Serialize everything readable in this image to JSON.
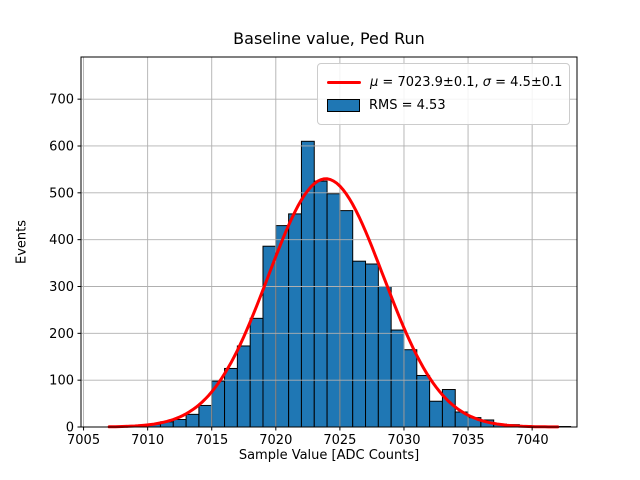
{
  "chart_data": {
    "type": "bar",
    "subtype": "histogram",
    "title": "Baseline value, Ped Run",
    "xlabel": "Sample Value [ADC Counts]",
    "ylabel": "Events",
    "xlim": [
      7004.8,
      7043.5
    ],
    "ylim": [
      0,
      790
    ],
    "grid": true,
    "x_ticks": [
      7005,
      7010,
      7015,
      7020,
      7025,
      7030,
      7035,
      7040
    ],
    "x_tick_labels": [
      "7005",
      "7010",
      "7015",
      "7020",
      "7025",
      "7030",
      "7035",
      "7040"
    ],
    "y_ticks": [
      0,
      100,
      200,
      300,
      400,
      500,
      600,
      700
    ],
    "y_tick_labels": [
      "0",
      "100",
      "200",
      "300",
      "400",
      "500",
      "600",
      "700"
    ],
    "bin_width": 1,
    "bin_left_edges": [
      7009,
      7010,
      7011,
      7012,
      7013,
      7014,
      7015,
      7016,
      7017,
      7018,
      7019,
      7020,
      7021,
      7022,
      7023,
      7024,
      7025,
      7026,
      7027,
      7028,
      7029,
      7030,
      7031,
      7032,
      7033,
      7034,
      7035,
      7036,
      7037,
      7038,
      7039,
      7040,
      7041,
      7042
    ],
    "counts": [
      2,
      6,
      11,
      16,
      27,
      46,
      98,
      125,
      173,
      232,
      386,
      430,
      455,
      610,
      525,
      498,
      462,
      354,
      348,
      300,
      207,
      165,
      110,
      55,
      80,
      32,
      20,
      15,
      6,
      5,
      3,
      2,
      2,
      1
    ],
    "fit": {
      "type": "gaussian",
      "mu": 7023.9,
      "sigma": 4.5,
      "amplitude": 530,
      "x_start": 7007,
      "x_end": 7042
    },
    "legend": {
      "position": "upper right",
      "items": [
        {
          "swatch": "line",
          "label_parts": {
            "mu_symbol": "μ",
            "mu_rest": " = 7023.9±0.1, ",
            "sigma_symbol": "σ",
            "sigma_rest": " = 4.5±0.1"
          }
        },
        {
          "swatch": "patch",
          "label": "RMS = 4.53"
        }
      ]
    },
    "colors": {
      "bar_fill": "#1f77b4",
      "bar_edge": "#000000",
      "fit_line": "#ff0000",
      "grid": "#b0b0b0",
      "axes_edge": "#000000",
      "background": "#ffffff",
      "legend_border": "#cccccc"
    }
  }
}
